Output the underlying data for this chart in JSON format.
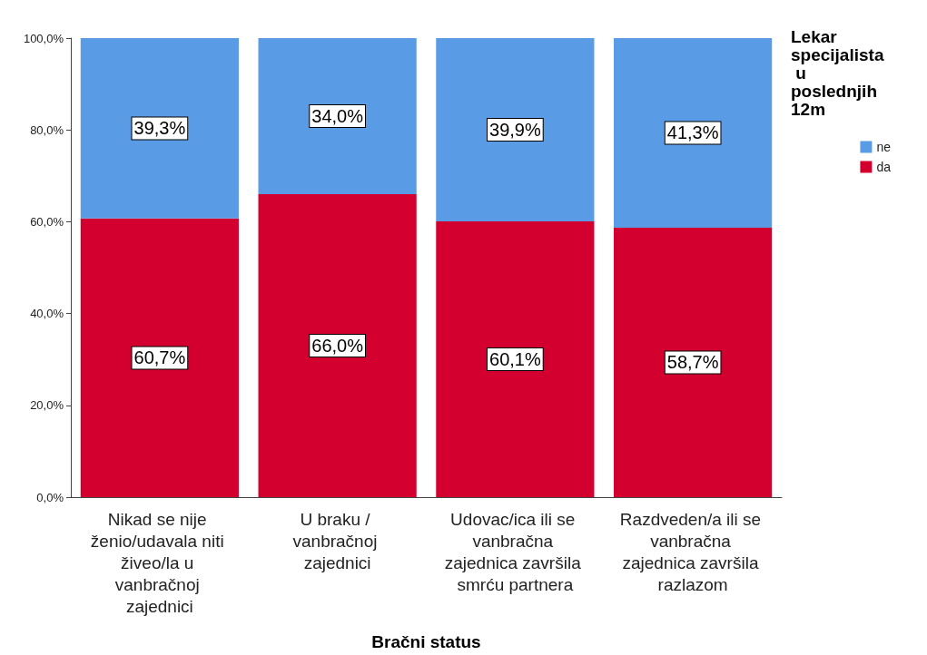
{
  "chart_data": {
    "type": "bar",
    "stacked": true,
    "xlabel": "Bračni status",
    "legend_title": "Lekar specijalista u poslednjih 12m",
    "legend": "right",
    "grid": false,
    "categories": [
      "Nikad se nije ženio/udavala niti živeo/la u vanbračnoj zajednici",
      "U braku / vanbračnoj zajednici",
      "Udovac/ica ili se vanbračna zajednica završila smrću partnera",
      "Razdveden/a ili se vanbračna zajednica završila razlazom"
    ],
    "series": [
      {
        "name": "da",
        "color": "#d3002f",
        "values": [
          60.7,
          66.0,
          60.1,
          58.7
        ],
        "value_labels": [
          "60,7%",
          "66,0%",
          "60,1%",
          "58,7%"
        ]
      },
      {
        "name": "ne",
        "color": "#5a9be5",
        "values": [
          39.3,
          34.0,
          39.9,
          41.3
        ],
        "value_labels": [
          "39,3%",
          "34,0%",
          "39,9%",
          "41,3%"
        ]
      }
    ],
    "ylim": [
      0,
      100
    ],
    "yticks": [
      {
        "value": 0,
        "label": "0,0%"
      },
      {
        "value": 20,
        "label": "20,0%"
      },
      {
        "value": 40,
        "label": "40,0%"
      },
      {
        "value": 60,
        "label": "60,0%"
      },
      {
        "value": 80,
        "label": "80,0%"
      },
      {
        "value": 100,
        "label": "100,0%"
      }
    ]
  }
}
